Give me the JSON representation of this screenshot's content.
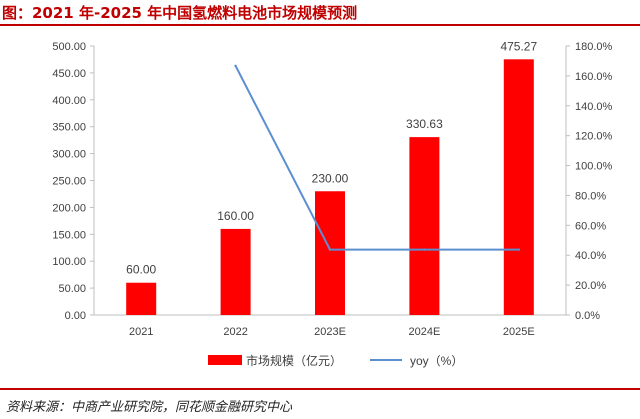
{
  "title": "图：2021 年-2025 年中国氢燃料电池市场规模预测",
  "source": "资料来源：中商产业研究院，同花顺金融研究中心",
  "colors": {
    "bar": "#ff0000",
    "line": "#5b8fd0",
    "accent": "#c00000",
    "axis": "#bfbfbf"
  },
  "chart_data": {
    "type": "bar",
    "categories": [
      "2021",
      "2022",
      "2023E",
      "2024E",
      "2025E"
    ],
    "series": [
      {
        "name": "市场规模（亿元）",
        "type": "bar",
        "axis": "left",
        "values": [
          60.0,
          160.0,
          230.0,
          330.63,
          475.27
        ],
        "data_labels": [
          "60.00",
          "160.00",
          "230.00",
          "330.63",
          "475.27"
        ]
      },
      {
        "name": "yoy（%）",
        "type": "line",
        "axis": "right",
        "values": [
          null,
          166.7,
          43.75,
          43.75,
          43.75
        ]
      }
    ],
    "y_left": {
      "ylim": [
        0,
        500
      ],
      "ticks": [
        "0.00",
        "50.00",
        "100.00",
        "150.00",
        "200.00",
        "250.00",
        "300.00",
        "350.00",
        "400.00",
        "450.00",
        "500.00"
      ]
    },
    "y_right": {
      "ylim": [
        0,
        180
      ],
      "ticks": [
        "0.0%",
        "20.0%",
        "40.0%",
        "60.0%",
        "80.0%",
        "100.0%",
        "120.0%",
        "140.0%",
        "160.0%",
        "180.0%"
      ]
    },
    "grid": false,
    "legend": "bottom"
  }
}
